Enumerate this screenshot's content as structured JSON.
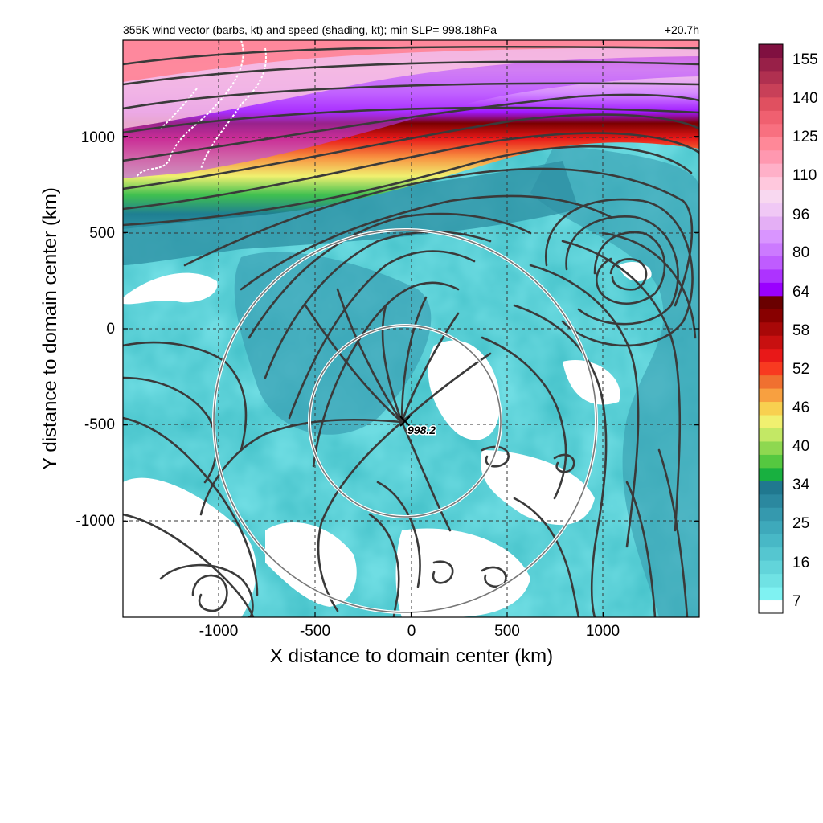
{
  "chart_data": {
    "type": "heatmap",
    "title": "355K wind vector (barbs, kt) and speed (shading, kt); min SLP= 998.18hPa",
    "time_label": "+20.7h",
    "xlabel": "X distance to domain center (km)",
    "ylabel": "Y distance to domain center (km)",
    "xlim": [
      -1500,
      1500
    ],
    "ylim": [
      -1500,
      1500
    ],
    "x_ticks": [
      -1000,
      -500,
      0,
      500,
      1000
    ],
    "x_tick_labels": [
      "-1000",
      "-500",
      "0",
      "500",
      "1000"
    ],
    "y_ticks": [
      -1000,
      -500,
      0,
      500,
      1000
    ],
    "y_tick_labels": [
      "-1000",
      "-500",
      "0",
      "500",
      "1000"
    ],
    "grid": "dashed",
    "colorbar": {
      "tick_labels": [
        "7",
        "16",
        "25",
        "34",
        "40",
        "46",
        "52",
        "58",
        "64",
        "80",
        "96",
        "110",
        "125",
        "140",
        "155"
      ],
      "colors": [
        "#ffffff",
        "#7ff2f2",
        "#70e2e4",
        "#62d4da",
        "#55c6d0",
        "#48b8c6",
        "#3ea9bb",
        "#3599ae",
        "#2b889f",
        "#20788f",
        "#18b040",
        "#55c840",
        "#8ed850",
        "#c3e865",
        "#f0f070",
        "#f8d050",
        "#f8a040",
        "#f07030",
        "#f83a20",
        "#e81818",
        "#c81010",
        "#a80808",
        "#880000",
        "#6a0000",
        "#9a00ff",
        "#ad33ff",
        "#bf5cff",
        "#cc7aff",
        "#d995ff",
        "#e4aff5",
        "#f0c8f5",
        "#f8d8f0",
        "#ffc8dd",
        "#ffb0c8",
        "#ff98b0",
        "#ff8898",
        "#f87080",
        "#f06070",
        "#e05060",
        "#c84058",
        "#b03050",
        "#982048",
        "#801040"
      ]
    },
    "min_slp_label": "998.2",
    "min_slp_center_km": [
      -40,
      -480
    ],
    "range_rings_radius_km": [
      500,
      1000
    ]
  }
}
